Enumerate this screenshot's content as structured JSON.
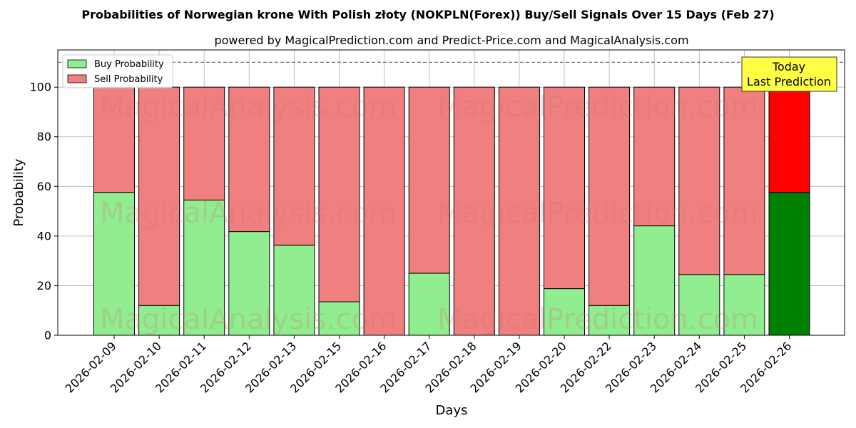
{
  "chart_data": {
    "type": "bar",
    "stacked": true,
    "title": "Probabilities of Norwegian krone With Polish złoty (NOKPLN(Forex)) Buy/Sell Signals Over 15 Days (Feb 27)",
    "subtitle": "powered by MagicalPrediction.com and Predict-Price.com and MagicalAnalysis.com",
    "xlabel": "Days",
    "ylabel": "Probability",
    "ylim": [
      0,
      115
    ],
    "yticks": [
      0,
      20,
      40,
      60,
      80,
      100
    ],
    "reference_line": 110,
    "grid": true,
    "legend_position": "top-left",
    "categories": [
      "2026-02-09",
      "2026-02-10",
      "2026-02-11",
      "2026-02-12",
      "2026-02-13",
      "2026-02-15",
      "2026-02-16",
      "2026-02-17",
      "2026-02-18",
      "2026-02-19",
      "2026-02-20",
      "2026-02-22",
      "2026-02-23",
      "2026-02-24",
      "2026-02-25",
      "2026-02-26"
    ],
    "series": [
      {
        "name": "Buy Probability",
        "color": "#90ee90",
        "highlight_color": "#008000",
        "values": [
          57.6,
          12,
          54.5,
          41.8,
          36.3,
          13.5,
          0,
          25,
          0,
          0,
          18.8,
          12,
          44.1,
          24.5,
          24.5,
          57.6
        ]
      },
      {
        "name": "Sell Probability",
        "color": "#f08080",
        "highlight_color": "#ff0000",
        "values": [
          42.4,
          88,
          45.5,
          58.2,
          63.7,
          86.5,
          100,
          75,
          100,
          100,
          81.2,
          88,
          55.9,
          75.5,
          75.5,
          42.4
        ]
      }
    ],
    "highlight_index": 15,
    "annotation": {
      "lines": [
        "Today",
        "Last Prediction"
      ],
      "background": "#ffff44"
    },
    "watermarks": [
      "MagicalAnalysis.com",
      "MagicalPrediction.com"
    ]
  }
}
